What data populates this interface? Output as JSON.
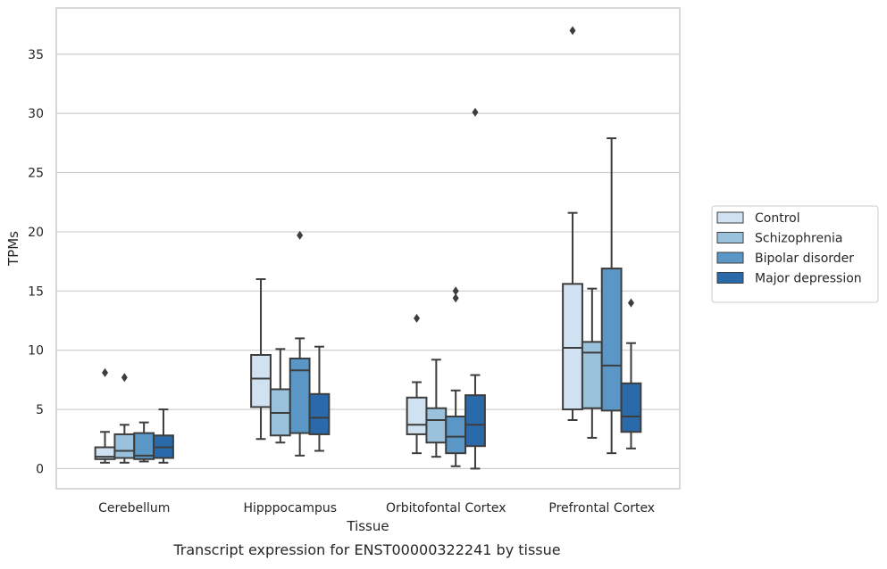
{
  "chart_data": {
    "type": "box",
    "caption": "Transcript expression for ENST00000322241 by tissue",
    "xlabel": "Tissue",
    "ylabel": "TPMs",
    "ylim": [
      -1.7,
      38.9
    ],
    "yticks": [
      0,
      5,
      10,
      15,
      20,
      25,
      30,
      35
    ],
    "grid": "horizontal",
    "legend_position": "right",
    "categories": [
      "Cerebellum",
      "Hipppocampus",
      "Orbitofontal Cortex",
      "Prefrontal Cortex"
    ],
    "series": [
      {
        "name": "Control",
        "color": "#d0e1f1",
        "boxes": [
          {
            "whislo": 0.5,
            "q1": 0.8,
            "med": 1.0,
            "q3": 1.8,
            "whishi": 3.1,
            "fliers": [
              8.1
            ]
          },
          {
            "whislo": 2.5,
            "q1": 5.2,
            "med": 7.6,
            "q3": 9.6,
            "whishi": 16.0,
            "fliers": []
          },
          {
            "whislo": 1.3,
            "q1": 2.9,
            "med": 3.7,
            "q3": 6.0,
            "whishi": 7.3,
            "fliers": [
              12.7
            ]
          },
          {
            "whislo": 4.1,
            "q1": 5.0,
            "med": 10.2,
            "q3": 15.6,
            "whishi": 21.6,
            "fliers": [
              37.0
            ]
          }
        ]
      },
      {
        "name": "Schizophrenia",
        "color": "#9ac2dd",
        "boxes": [
          {
            "whislo": 0.5,
            "q1": 0.9,
            "med": 1.5,
            "q3": 2.9,
            "whishi": 3.7,
            "fliers": [
              7.7
            ]
          },
          {
            "whislo": 2.2,
            "q1": 2.8,
            "med": 4.7,
            "q3": 6.7,
            "whishi": 10.1,
            "fliers": []
          },
          {
            "whislo": 1.0,
            "q1": 2.2,
            "med": 4.1,
            "q3": 5.1,
            "whishi": 9.2,
            "fliers": []
          },
          {
            "whislo": 2.6,
            "q1": 5.1,
            "med": 9.8,
            "q3": 10.7,
            "whishi": 15.2,
            "fliers": []
          }
        ]
      },
      {
        "name": "Bipolar disorder",
        "color": "#5a97c6",
        "boxes": [
          {
            "whislo": 0.6,
            "q1": 0.8,
            "med": 1.1,
            "q3": 3.0,
            "whishi": 3.9,
            "fliers": []
          },
          {
            "whislo": 1.1,
            "q1": 3.0,
            "med": 8.3,
            "q3": 9.3,
            "whishi": 11.0,
            "fliers": [
              19.7
            ]
          },
          {
            "whislo": 0.2,
            "q1": 1.3,
            "med": 2.7,
            "q3": 4.4,
            "whishi": 6.6,
            "fliers": [
              14.4,
              15.0
            ]
          },
          {
            "whislo": 1.3,
            "q1": 4.9,
            "med": 8.7,
            "q3": 16.9,
            "whishi": 27.9,
            "fliers": []
          }
        ]
      },
      {
        "name": "Major depression",
        "color": "#2a6aaa",
        "boxes": [
          {
            "whislo": 0.5,
            "q1": 0.9,
            "med": 1.8,
            "q3": 2.8,
            "whishi": 5.0,
            "fliers": []
          },
          {
            "whislo": 1.5,
            "q1": 2.9,
            "med": 4.3,
            "q3": 6.3,
            "whishi": 10.3,
            "fliers": []
          },
          {
            "whislo": 0.0,
            "q1": 1.9,
            "med": 3.7,
            "q3": 6.2,
            "whishi": 7.9,
            "fliers": [
              30.1
            ]
          },
          {
            "whislo": 1.7,
            "q1": 3.1,
            "med": 4.4,
            "q3": 7.2,
            "whishi": 10.6,
            "fliers": [
              14.0
            ]
          }
        ]
      }
    ]
  }
}
